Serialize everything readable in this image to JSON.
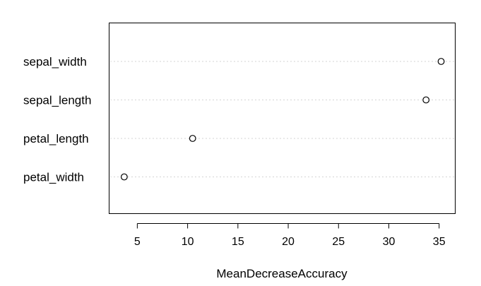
{
  "chart_data": {
    "type": "scatter",
    "categories": [
      "sepal_width",
      "sepal_length",
      "petal_length",
      "petal_width"
    ],
    "values": [
      35.2,
      33.7,
      10.5,
      3.7
    ],
    "xlabel": "MeanDecreaseAccuracy",
    "xlim": [
      2.2,
      36.6
    ],
    "xticks": [
      5,
      10,
      15,
      20,
      25,
      30,
      35
    ],
    "grid": "dotted-horizontal"
  }
}
